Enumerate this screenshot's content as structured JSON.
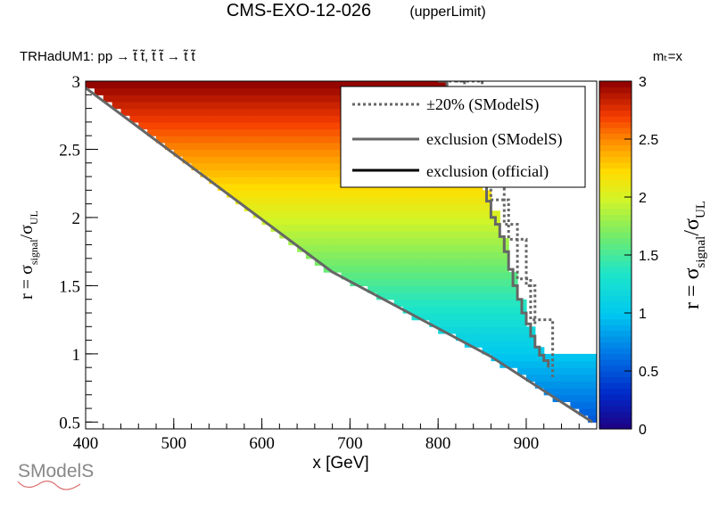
{
  "header": {
    "title": "CMS-EXO-12-026",
    "subtitle": "(upperLimit)",
    "topology": "TRHadUM1: pp  → t̃ t̃, t̃ t̃ → t̃ t̃",
    "mass_note": "mₜ=x"
  },
  "legend": {
    "items": [
      {
        "label": "±20% (SModelS)",
        "style": "dotted",
        "color": "#666666"
      },
      {
        "label": "exclusion (SModelS)",
        "style": "solid",
        "color": "#666666"
      },
      {
        "label": "exclusion (official)",
        "style": "solid",
        "color": "#000000"
      }
    ]
  },
  "logo": {
    "text": "SModelS"
  },
  "colors": {
    "frame": "#000000",
    "background": "#ffffff"
  },
  "chart_data": {
    "type": "heatmap",
    "xlabel": "x [GeV]",
    "ylabel": "r = σsignal/σUL",
    "zlabel": "r = σsignal/σUL",
    "xlim": [
      400,
      980
    ],
    "ylim": [
      0.45,
      3.0
    ],
    "zlim": [
      0,
      3
    ],
    "x_ticks": [
      400,
      500,
      600,
      700,
      800,
      900
    ],
    "y_ticks": [
      0.5,
      1,
      1.5,
      2,
      2.5,
      3
    ],
    "z_ticks": [
      0,
      0.5,
      1,
      1.5,
      2,
      2.5,
      3
    ],
    "colormap": "rainbow",
    "lower_edge": {
      "x": [
        400,
        680,
        860,
        975
      ],
      "r": [
        2.95,
        1.6,
        0.98,
        0.5
      ]
    },
    "exclusion_smodels": {
      "x": [
        800,
        810,
        815,
        820,
        825,
        830,
        835,
        840,
        845,
        850,
        855,
        860,
        865,
        870,
        875,
        880,
        885,
        890,
        895,
        900,
        905,
        910,
        915,
        920,
        925
      ],
      "r": [
        3.0,
        2.86,
        2.77,
        2.74,
        2.66,
        2.59,
        2.5,
        2.42,
        2.33,
        2.23,
        2.12,
        2.0,
        1.95,
        1.86,
        1.75,
        1.62,
        1.5,
        1.4,
        1.3,
        1.22,
        1.13,
        1.05,
        0.99,
        0.95,
        0.9
      ]
    },
    "upper_band_20pct": {
      "x": [
        800,
        830,
        860,
        880,
        900,
        910
      ],
      "r": [
        3.0,
        2.57,
        2.13,
        1.84,
        1.5,
        1.2
      ]
    },
    "lower_band_20pct": {
      "x": [
        820,
        850,
        875,
        890,
        905,
        930
      ],
      "r": [
        3.0,
        2.35,
        1.95,
        1.55,
        1.25,
        0.83
      ]
    }
  }
}
